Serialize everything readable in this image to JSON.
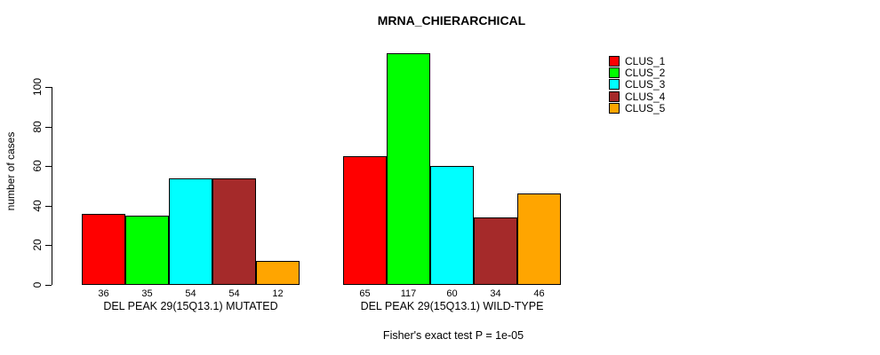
{
  "title": "MRNA_CHIERARCHICAL",
  "y_axis": {
    "label": "number of cases",
    "ticks": [
      0,
      20,
      40,
      60,
      80,
      100
    ]
  },
  "footer": "Fisher's exact test P = 1e-05",
  "legend": {
    "items": [
      {
        "label": "CLUS_1",
        "color": "#FF0000"
      },
      {
        "label": "CLUS_2",
        "color": "#00FF00"
      },
      {
        "label": "CLUS_3",
        "color": "#00FFFF"
      },
      {
        "label": "CLUS_4",
        "color": "#A52A2A"
      },
      {
        "label": "CLUS_5",
        "color": "#FFA500"
      }
    ]
  },
  "chart_data": {
    "type": "bar",
    "title": "MRNA_CHIERARCHICAL",
    "xlabel": "",
    "ylabel": "number of cases",
    "ylim": [
      0,
      117
    ],
    "yticks": [
      0,
      20,
      40,
      60,
      80,
      100
    ],
    "grid": false,
    "legend_position": "top-right",
    "categories": [
      "DEL PEAK 29(15Q13.1) MUTATED",
      "DEL PEAK 29(15Q13.1) WILD-TYPE"
    ],
    "series": [
      {
        "name": "CLUS_1",
        "color": "#FF0000",
        "values": [
          36,
          65
        ]
      },
      {
        "name": "CLUS_2",
        "color": "#00FF00",
        "values": [
          35,
          117
        ]
      },
      {
        "name": "CLUS_3",
        "color": "#00FFFF",
        "values": [
          54,
          60
        ]
      },
      {
        "name": "CLUS_4",
        "color": "#A52A2A",
        "values": [
          54,
          34
        ]
      },
      {
        "name": "CLUS_5",
        "color": "#FFA500",
        "values": [
          12,
          46
        ]
      }
    ],
    "bar_value_labels": [
      [
        36,
        35,
        54,
        54,
        12
      ],
      [
        65,
        117,
        60,
        34,
        46
      ]
    ],
    "annotation": "Fisher's exact test P = 1e-05"
  }
}
